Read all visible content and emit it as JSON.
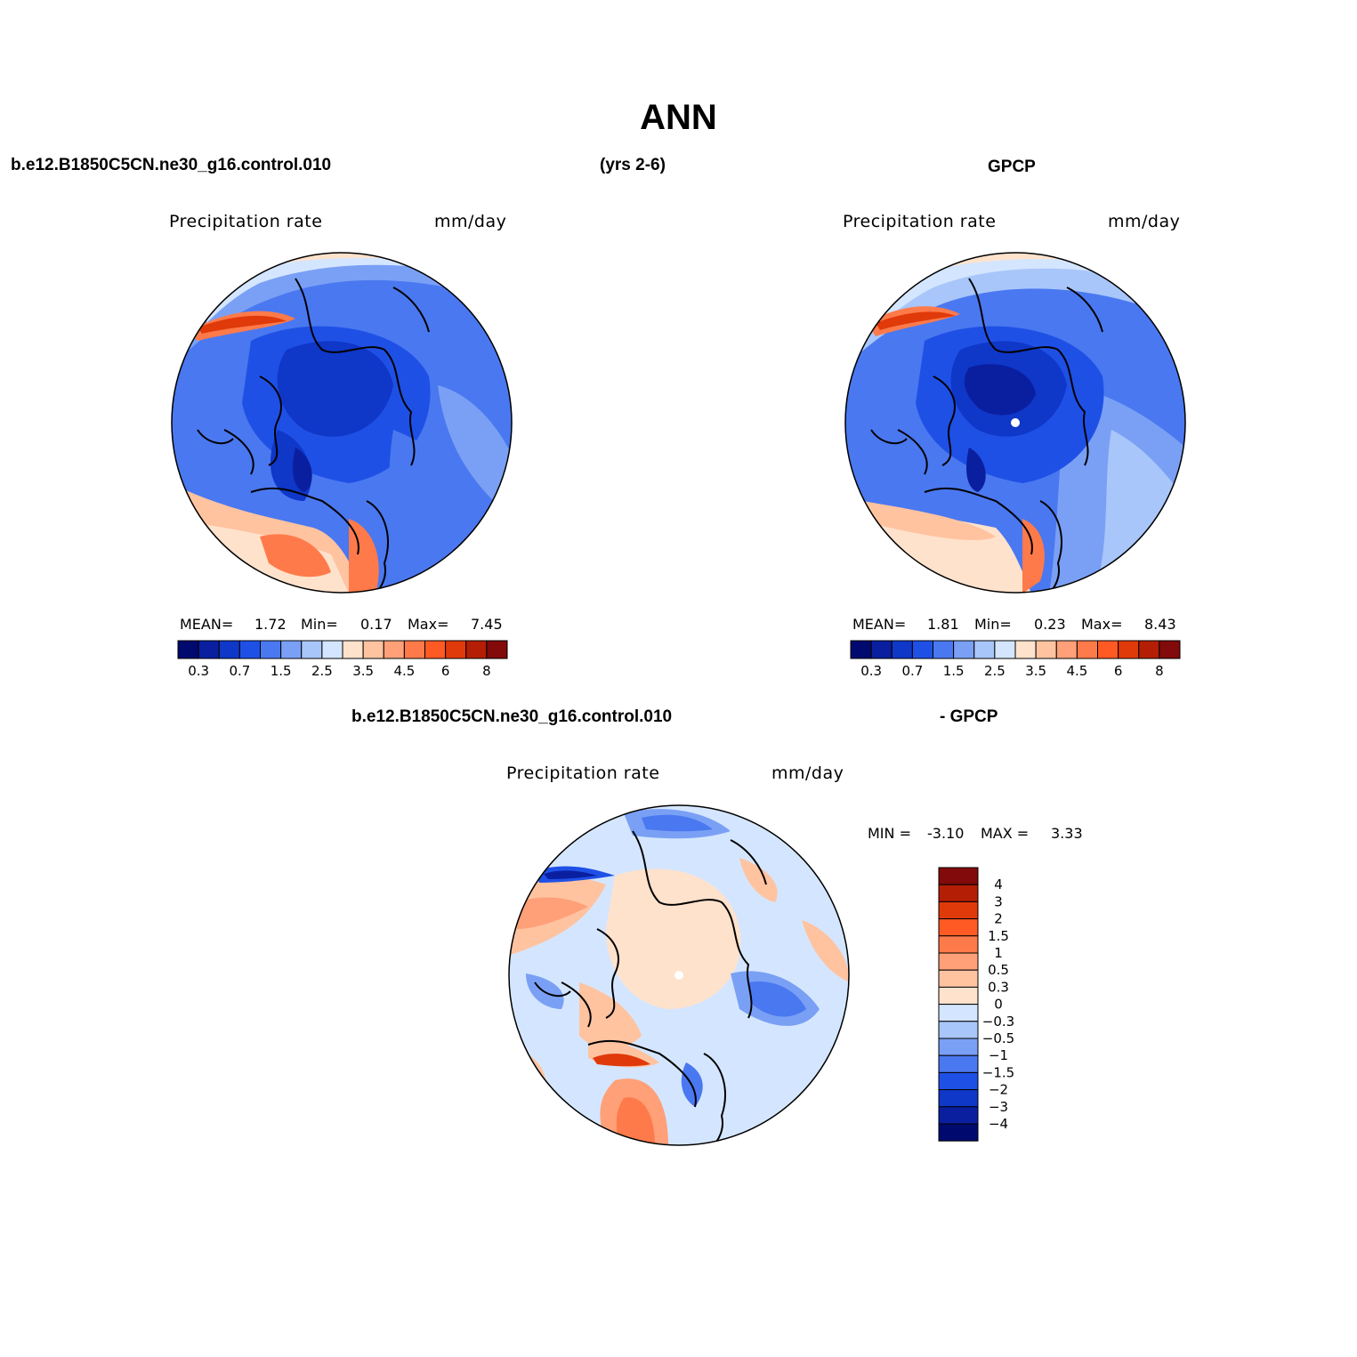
{
  "page": {
    "title": "ANN",
    "case_name": "b.e12.B1850C5CN.ne30_g16.control.010",
    "years": "(yrs 2-6)",
    "obs_name": "GPCP",
    "diff_case": "b.e12.B1850C5CN.ne30_g16.control.010",
    "diff_obs": "- GPCP"
  },
  "panels": [
    {
      "id": "model",
      "variable": "Precipitation rate",
      "units": "mm/day",
      "mean_label": "MEAN=",
      "mean_value": "1.72",
      "min_label": "Min=",
      "min_value": "0.17",
      "max_label": "Max=",
      "max_value": "7.45",
      "pole_marker": false
    },
    {
      "id": "obs",
      "variable": "Precipitation rate",
      "units": "mm/day",
      "mean_label": "MEAN=",
      "mean_value": "1.81",
      "min_label": "Min=",
      "min_value": "0.23",
      "max_label": "Max=",
      "max_value": "8.43",
      "pole_marker": true
    }
  ],
  "diff_panel": {
    "variable": "Precipitation rate",
    "units": "mm/day",
    "min_label": "MIN =",
    "min_value": "-3.10",
    "max_label": "MAX =",
    "max_value": "3.33"
  },
  "colorbar_abs": {
    "colors": [
      "#000a6e",
      "#0a1fa0",
      "#0f37c8",
      "#1f50e6",
      "#4a78f0",
      "#7aa0f5",
      "#a8c6fa",
      "#d4e6ff",
      "#ffe2cc",
      "#ffc3a0",
      "#ffa078",
      "#ff7a4a",
      "#ff5a24",
      "#e03a0a",
      "#b41e05",
      "#820a0a"
    ],
    "ticks": [
      "0.3",
      "0.7",
      "1.5",
      "2.5",
      "3.5",
      "4.5",
      "6",
      "8"
    ]
  },
  "colorbar_diff": {
    "colors": [
      "#820a0a",
      "#b41e05",
      "#e03a0a",
      "#ff5a24",
      "#ff7a4a",
      "#ffa078",
      "#ffc3a0",
      "#ffe2cc",
      "#d4e6ff",
      "#a8c6fa",
      "#7aa0f5",
      "#4a78f0",
      "#1f50e6",
      "#0f37c8",
      "#0a1fa0",
      "#000a6e"
    ],
    "ticks": [
      "4",
      "3",
      "2",
      "1.5",
      "1",
      "0.5",
      "0.3",
      "0",
      "−0.3",
      "−0.5",
      "−1",
      "−1.5",
      "−2",
      "−3",
      "−4"
    ]
  }
}
